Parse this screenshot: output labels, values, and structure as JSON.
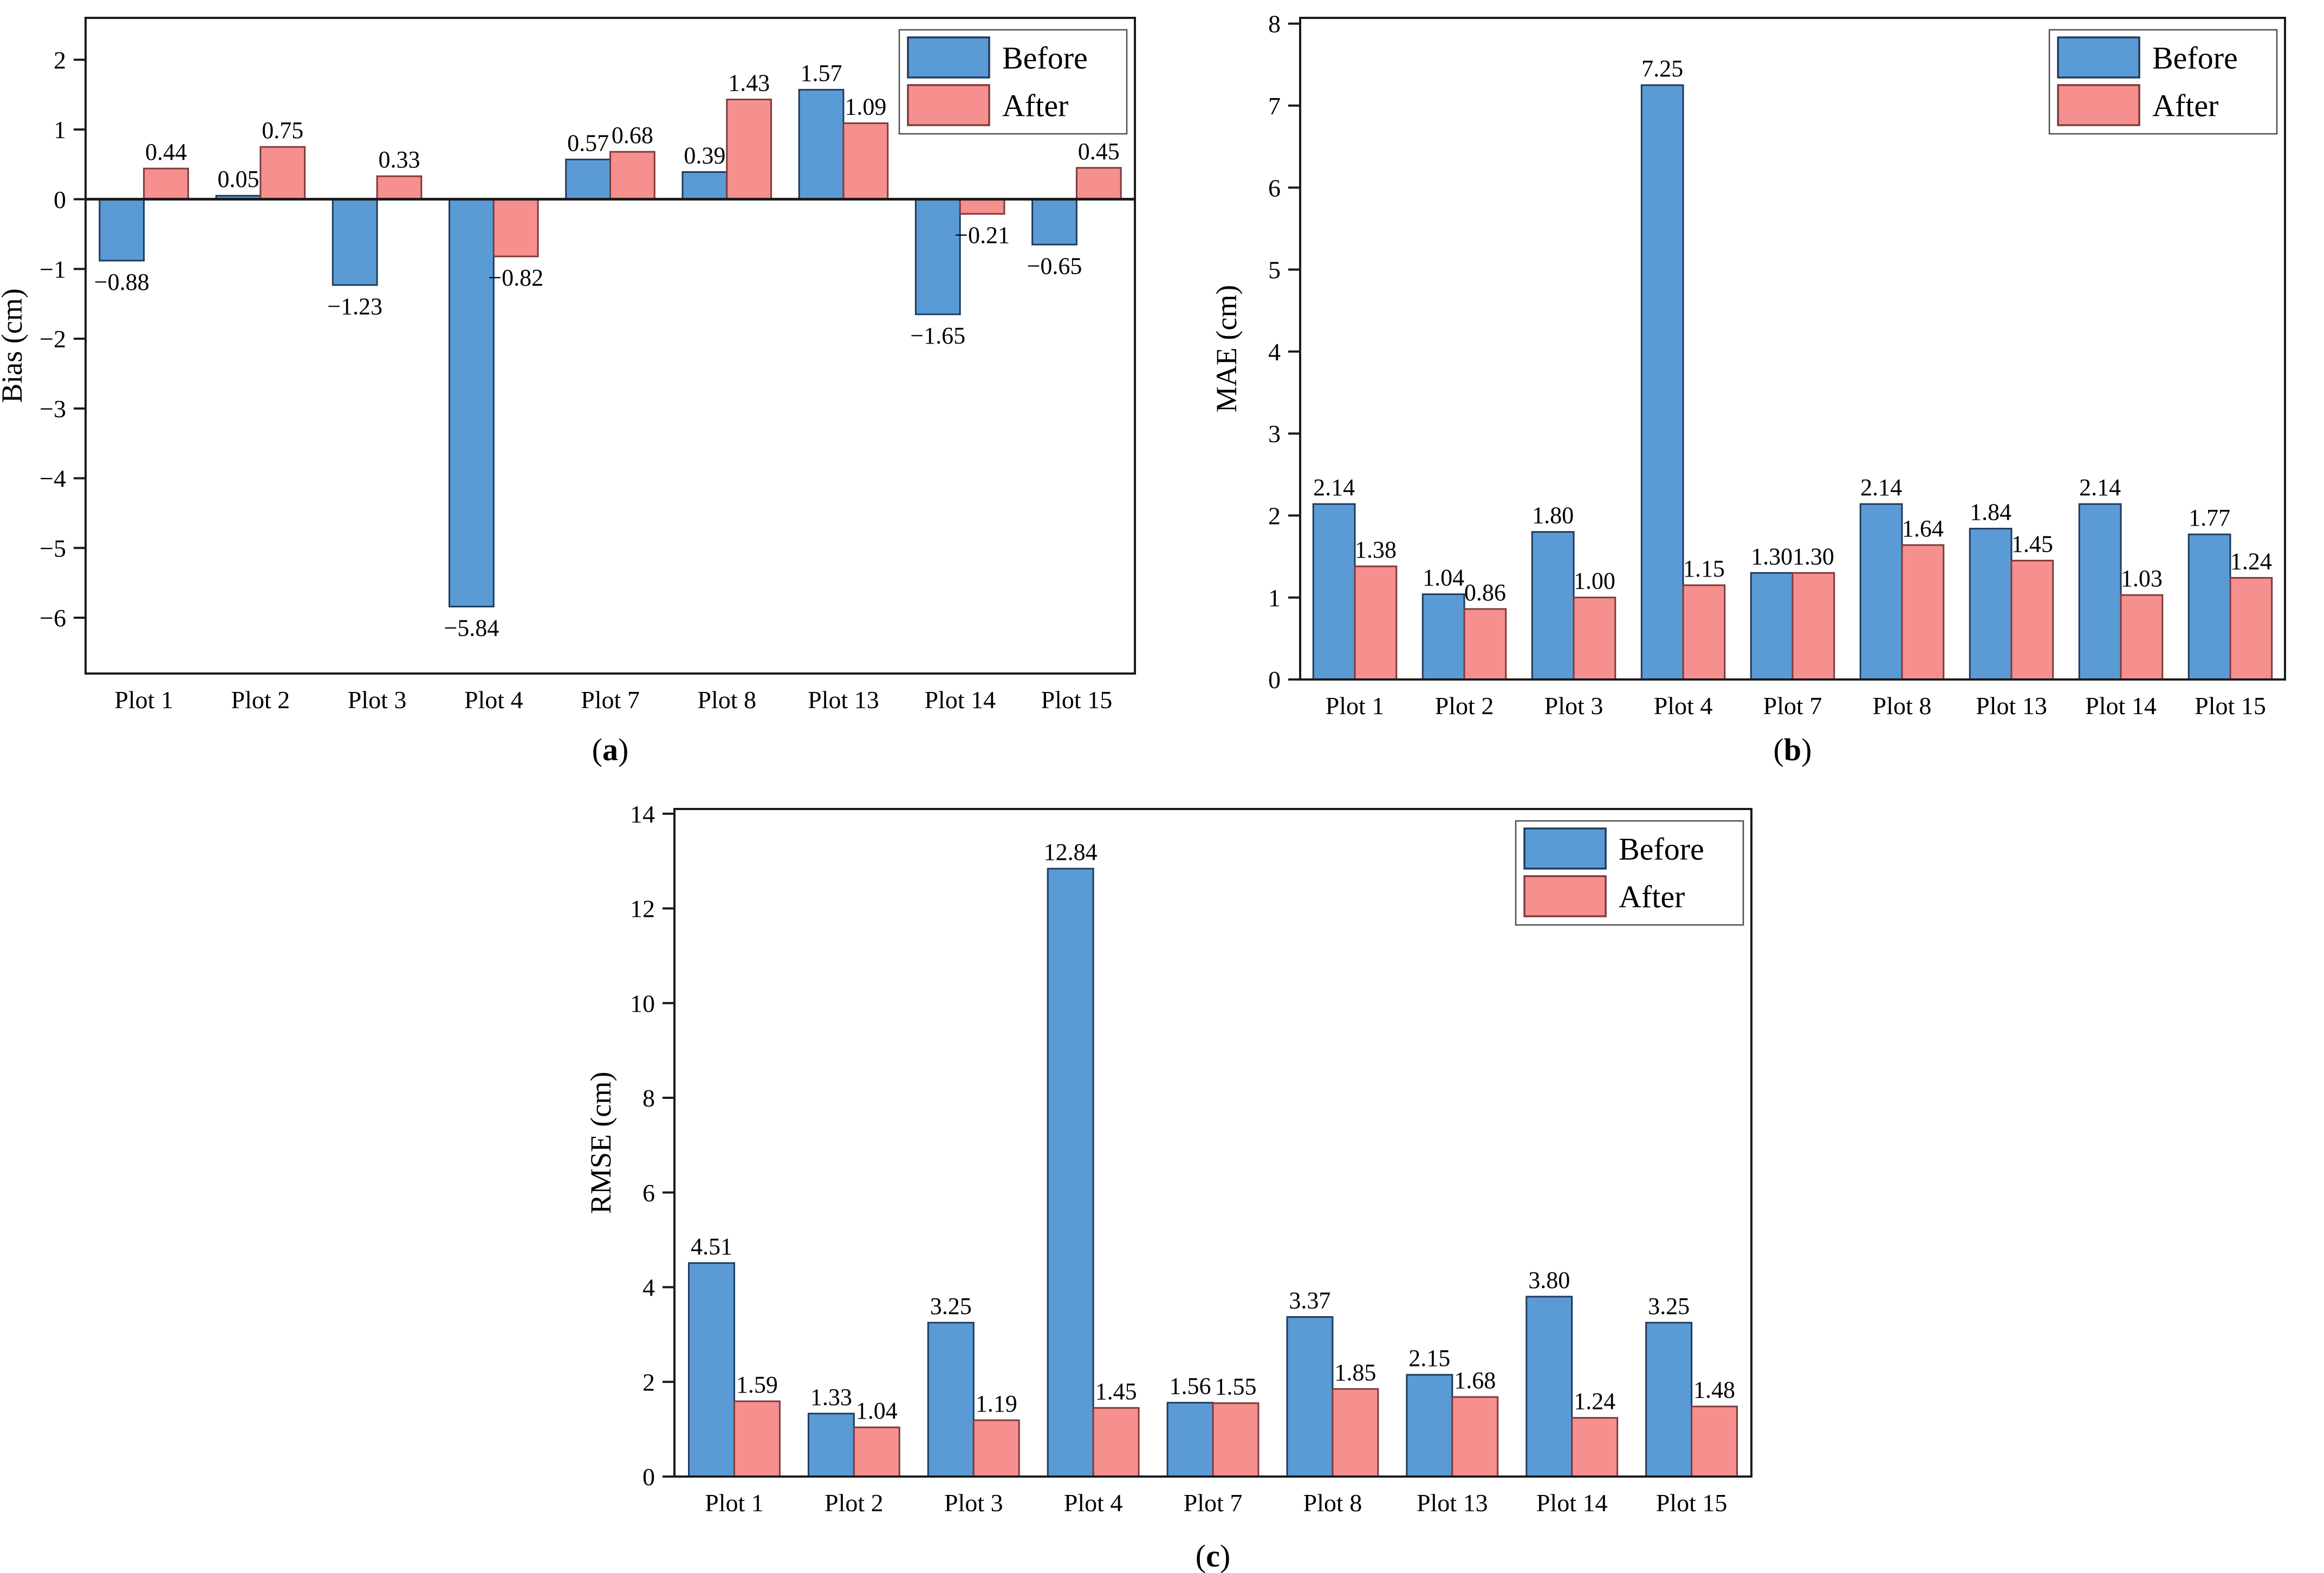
{
  "page": {
    "background": "#ffffff"
  },
  "colors": {
    "before_fill": "#5B9BD5",
    "before_edge": "#1F3A5F",
    "after_fill": "#F5908E",
    "after_edge": "#7E3B3B",
    "axis": "#1a1a1a",
    "text": "#000000",
    "legend_border": "#4d4d4d",
    "background": "#ffffff"
  },
  "legend": {
    "items": [
      "Before",
      "After"
    ],
    "position": "top-right"
  },
  "chart_data": [
    {
      "id": "a",
      "type": "bar",
      "title": "",
      "xlabel": "",
      "ylabel": "Bias (cm)",
      "categories": [
        "Plot 1",
        "Plot 2",
        "Plot 3",
        "Plot 4",
        "Plot 7",
        "Plot 8",
        "Plot 13",
        "Plot 14",
        "Plot 15"
      ],
      "series": [
        {
          "name": "Before",
          "values": [
            -0.88,
            0.05,
            -1.23,
            -5.84,
            0.57,
            0.39,
            1.57,
            -1.65,
            -0.65
          ]
        },
        {
          "name": "After",
          "values": [
            0.44,
            0.75,
            0.33,
            -0.82,
            0.68,
            1.43,
            1.09,
            -0.21,
            0.45
          ]
        }
      ],
      "ylim": [
        -6.8,
        2.6
      ],
      "yticks": [
        2,
        1,
        0,
        -1,
        -2,
        -3,
        -4,
        -5,
        -6
      ],
      "zero_line": true,
      "grid": false,
      "legend_position": "top-right",
      "caption": {
        "open": "(",
        "letter": "a",
        "close": ")"
      }
    },
    {
      "id": "b",
      "type": "bar",
      "title": "",
      "xlabel": "",
      "ylabel": "MAE (cm)",
      "categories": [
        "Plot 1",
        "Plot 2",
        "Plot 3",
        "Plot 4",
        "Plot 7",
        "Plot 8",
        "Plot 13",
        "Plot 14",
        "Plot 15"
      ],
      "series": [
        {
          "name": "Before",
          "values": [
            2.14,
            1.04,
            1.8,
            7.25,
            1.3,
            2.14,
            1.84,
            2.14,
            1.77
          ]
        },
        {
          "name": "After",
          "values": [
            1.38,
            0.86,
            1.0,
            1.15,
            1.3,
            1.64,
            1.45,
            1.03,
            1.24
          ]
        }
      ],
      "ylim": [
        0,
        8.07
      ],
      "yticks": [
        8,
        7,
        6,
        5,
        4,
        3,
        2,
        1,
        0
      ],
      "zero_line": false,
      "grid": false,
      "legend_position": "top-right",
      "caption": {
        "open": "(",
        "letter": "b",
        "close": ")"
      }
    },
    {
      "id": "c",
      "type": "bar",
      "title": "",
      "xlabel": "",
      "ylabel": "RMSE (cm)",
      "categories": [
        "Plot 1",
        "Plot 2",
        "Plot 3",
        "Plot 4",
        "Plot 7",
        "Plot 8",
        "Plot 13",
        "Plot 14",
        "Plot 15"
      ],
      "series": [
        {
          "name": "Before",
          "values": [
            4.51,
            1.33,
            3.25,
            12.84,
            1.56,
            3.37,
            2.15,
            3.8,
            3.25
          ]
        },
        {
          "name": "After",
          "values": [
            1.59,
            1.04,
            1.19,
            1.45,
            1.55,
            1.85,
            1.68,
            1.24,
            1.48
          ]
        }
      ],
      "ylim": [
        0,
        14.1
      ],
      "yticks": [
        14,
        12,
        10,
        8,
        6,
        4,
        2,
        0
      ],
      "zero_line": false,
      "grid": false,
      "legend_position": "top-right",
      "caption": {
        "open": "(",
        "letter": "c",
        "close": ")"
      }
    }
  ],
  "value_label_decimals": 2
}
